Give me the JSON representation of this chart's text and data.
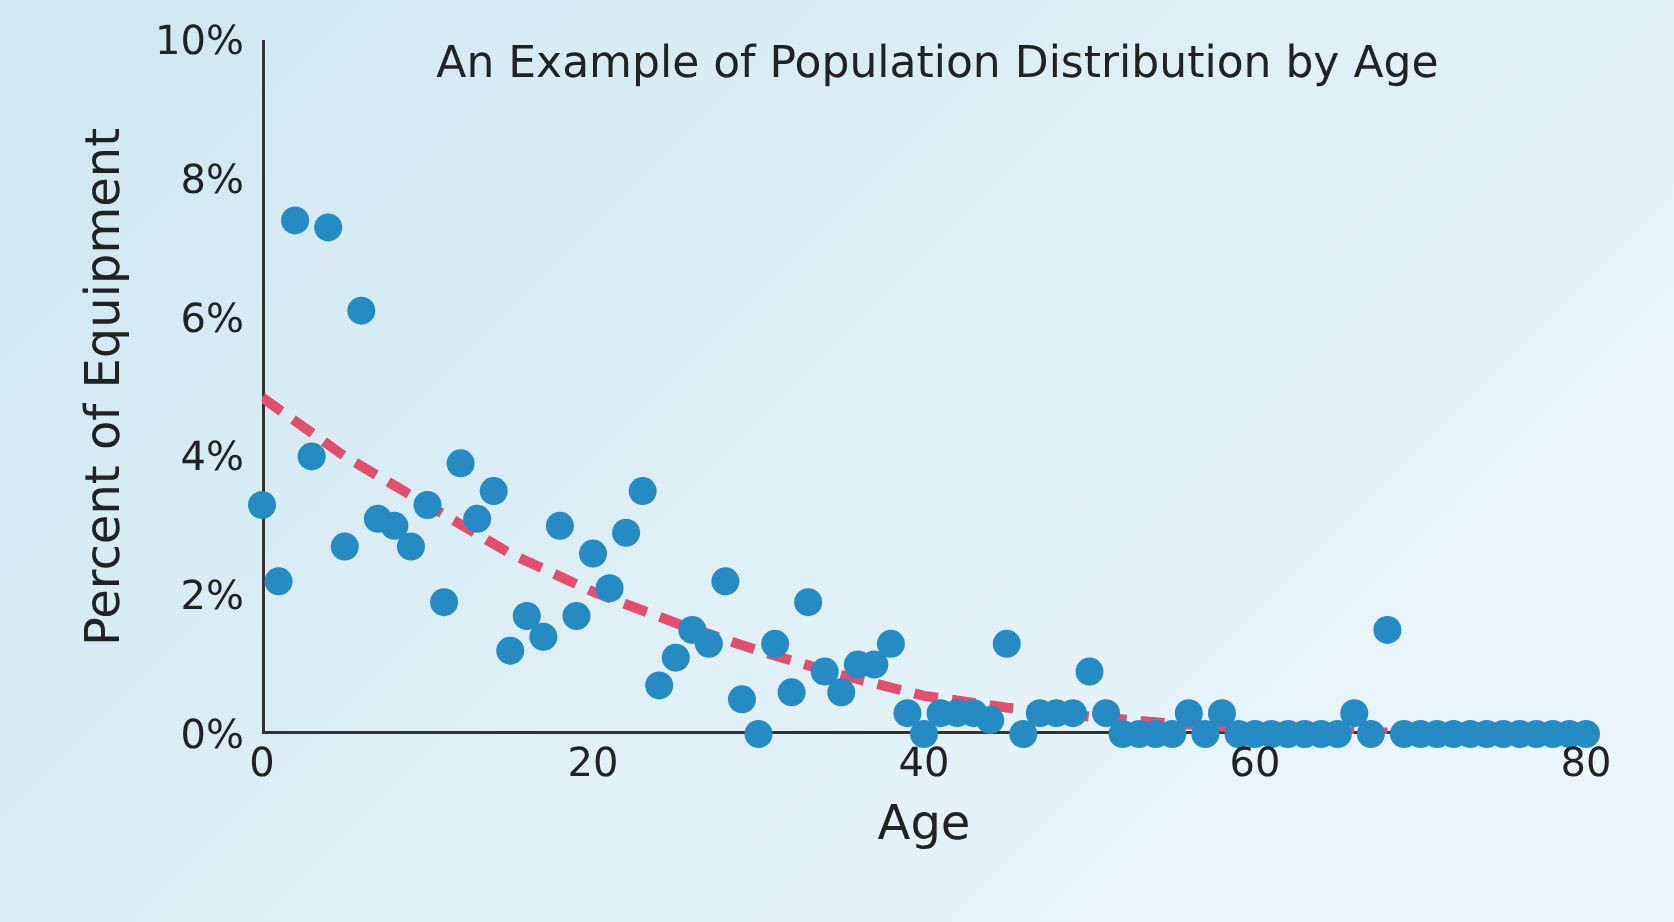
{
  "chart_data": {
    "type": "scatter",
    "title": "An Example of Population Distribution by Age",
    "xlabel": "Age",
    "ylabel": "Percent of Equipment",
    "xlim": [
      0,
      80
    ],
    "xticks": [
      0,
      20,
      40,
      60,
      80
    ],
    "ylim": [
      0,
      10
    ],
    "yticks": [
      {
        "value": 0,
        "label": "0%"
      },
      {
        "value": 2,
        "label": "2%"
      },
      {
        "value": 4,
        "label": "4%"
      },
      {
        "value": 6,
        "label": "6%"
      },
      {
        "value": 8,
        "label": "8%"
      },
      {
        "value": 10,
        "label": "10%"
      }
    ],
    "grid": false,
    "legend": false,
    "series": [
      {
        "color": "#258bc2",
        "marker": "circle",
        "x": [
          0,
          1,
          2,
          3,
          4,
          5,
          6,
          7,
          8,
          9,
          10,
          11,
          12,
          13,
          14,
          15,
          16,
          17,
          18,
          19,
          20,
          21,
          22,
          23,
          24,
          25,
          26,
          27,
          28,
          29,
          30,
          31,
          32,
          33,
          34,
          35,
          36,
          37,
          38,
          39,
          40,
          41,
          42,
          43,
          44,
          45,
          46,
          47,
          48,
          49,
          50,
          51,
          52,
          53,
          54,
          55,
          56,
          57,
          58,
          59,
          60,
          61,
          62,
          63,
          64,
          65,
          66,
          67,
          68,
          69,
          70,
          71,
          72,
          73,
          74,
          75,
          76,
          77,
          78,
          79,
          80
        ],
        "values": [
          3.3,
          2.2,
          7.4,
          4.0,
          7.3,
          2.7,
          6.1,
          3.1,
          3.0,
          2.7,
          3.3,
          1.9,
          3.9,
          3.1,
          3.5,
          1.2,
          1.7,
          1.4,
          3.0,
          1.7,
          2.6,
          2.1,
          2.9,
          3.5,
          0.7,
          1.1,
          1.5,
          1.3,
          2.2,
          0.5,
          0,
          1.3,
          0.6,
          1.9,
          0.9,
          0.6,
          1.0,
          1.0,
          1.3,
          0.3,
          0,
          0.3,
          0.3,
          0.3,
          0.2,
          1.3,
          0,
          0.3,
          0.3,
          0.3,
          0.9,
          0.3,
          0,
          0,
          0,
          0,
          0.3,
          0,
          0.3,
          0,
          0,
          0,
          0,
          0,
          0,
          0,
          0.3,
          0,
          1.5,
          0,
          0,
          0,
          0,
          0,
          0,
          0,
          0,
          0,
          0,
          0,
          0
        ]
      },
      {
        "color": "#e0506e",
        "type": "line",
        "marker": "none",
        "line_style": "dashed",
        "x": [
          0,
          5,
          10,
          15,
          20,
          25,
          30,
          35,
          40,
          45,
          50,
          55,
          60,
          65,
          68
        ],
        "values": [
          4.85,
          4.0,
          3.3,
          2.6,
          2.05,
          1.6,
          1.2,
          0.85,
          0.55,
          0.38,
          0.25,
          0.15,
          0.08,
          0.04,
          0.02
        ]
      }
    ]
  }
}
